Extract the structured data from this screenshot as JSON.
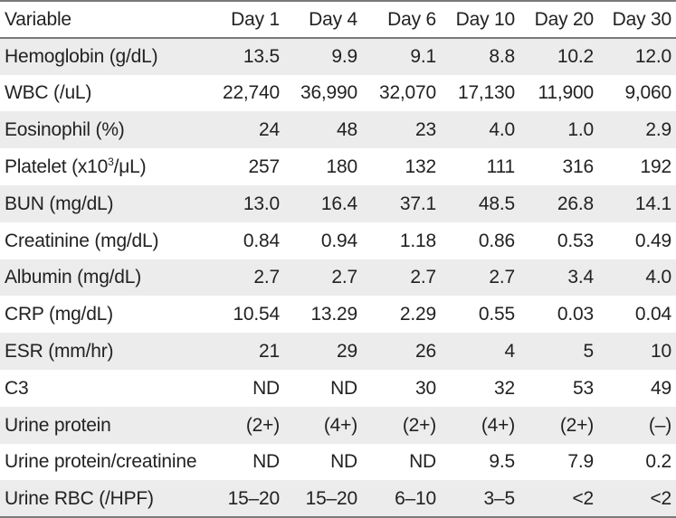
{
  "table": {
    "headers": [
      "Variable",
      "Day 1",
      "Day 4",
      "Day 6",
      "Day 10",
      "Day 20",
      "Day 30"
    ],
    "rows": [
      {
        "variable": "Hemoglobin (g/dL)",
        "values": [
          "13.5",
          "9.9",
          "9.1",
          "8.8",
          "10.2",
          "12.0"
        ]
      },
      {
        "variable": "WBC (/uL)",
        "values": [
          "22,740",
          "36,990",
          "32,070",
          "17,130",
          "11,900",
          "9,060"
        ]
      },
      {
        "variable": "Eosinophil (%)",
        "values": [
          "24",
          "48",
          "23",
          "4.0",
          "1.0",
          "2.9"
        ]
      },
      {
        "variable_parts": {
          "pre": "Platelet (x10",
          "sup": "3",
          "post": "/μL)"
        },
        "values": [
          "257",
          "180",
          "132",
          "111",
          "316",
          "192"
        ]
      },
      {
        "variable": "BUN (mg/dL)",
        "values": [
          "13.0",
          "16.4",
          "37.1",
          "48.5",
          "26.8",
          "14.1"
        ]
      },
      {
        "variable": "Creatinine (mg/dL)",
        "values": [
          "0.84",
          "0.94",
          "1.18",
          "0.86",
          "0.53",
          "0.49"
        ]
      },
      {
        "variable": "Albumin (mg/dL)",
        "values": [
          "2.7",
          "2.7",
          "2.7",
          "2.7",
          "3.4",
          "4.0"
        ]
      },
      {
        "variable": "CRP (mg/dL)",
        "values": [
          "10.54",
          "13.29",
          "2.29",
          "0.55",
          "0.03",
          "0.04"
        ]
      },
      {
        "variable": "ESR (mm/hr)",
        "values": [
          "21",
          "29",
          "26",
          "4",
          "5",
          "10"
        ]
      },
      {
        "variable": "C3",
        "values": [
          "ND",
          "ND",
          "30",
          "32",
          "53",
          "49"
        ]
      },
      {
        "variable": "Urine protein",
        "values": [
          "(2+)",
          "(4+)",
          "(2+)",
          "(4+)",
          "(2+)",
          "(–)"
        ]
      },
      {
        "variable": "Urine protein/creatinine",
        "values": [
          "ND",
          "ND",
          "ND",
          "9.5",
          "7.9",
          "0.2"
        ]
      },
      {
        "variable": "Urine RBC (/HPF)",
        "values": [
          "15–20",
          "15–20",
          "6–10",
          "3–5",
          "<2",
          "<2"
        ]
      }
    ]
  }
}
